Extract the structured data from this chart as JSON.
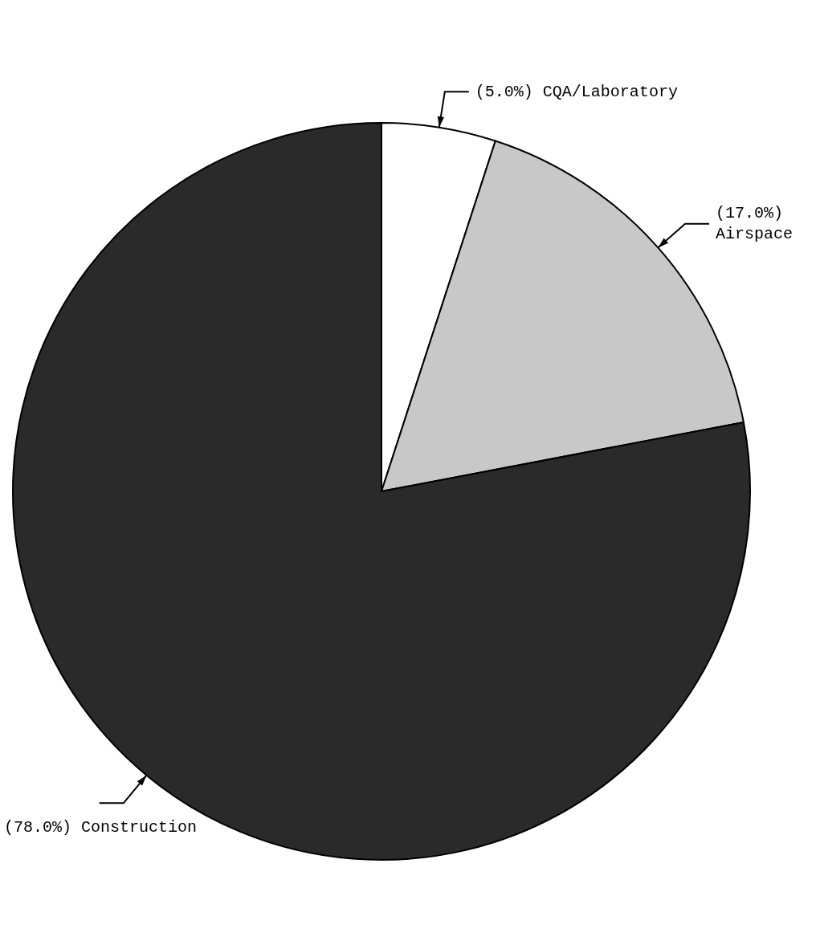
{
  "chart_data": {
    "type": "pie",
    "categories": [
      "CQA/Laboratory",
      "Airspace",
      "Construction"
    ],
    "values": [
      5.0,
      17.0,
      78.0
    ],
    "value_labels": [
      "(5.0%)",
      "(17.0%)",
      "(78.0%)"
    ],
    "colors": [
      "#ffffff",
      "#c8c8c8",
      "#2a2a2a"
    ],
    "legend": false
  }
}
